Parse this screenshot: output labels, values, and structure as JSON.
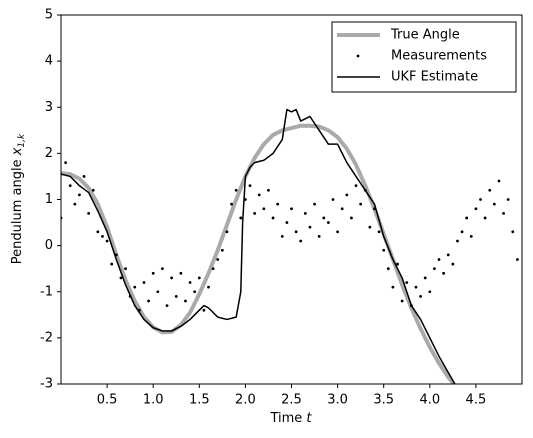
{
  "chart_data": {
    "type": "line",
    "xlabel": "Time",
    "xlabel_var": "t",
    "ylabel": "Pendulum angle",
    "ylabel_var": "x",
    "ylabel_sub": "1,k",
    "xlim": [
      0,
      5
    ],
    "xticks": [
      0.5,
      1.0,
      1.5,
      2.0,
      2.5,
      3.0,
      3.5,
      4.0,
      4.5
    ],
    "ylim": [
      -3,
      5
    ],
    "yticks": [
      -3,
      -2,
      -1,
      0,
      1,
      2,
      3,
      4,
      5
    ],
    "legend": "upper right",
    "series": [
      {
        "name": "True Angle",
        "kind": "line",
        "color": "#aaaaaa",
        "width": 4,
        "x": [
          0,
          0.1,
          0.2,
          0.3,
          0.4,
          0.5,
          0.6,
          0.7,
          0.8,
          0.9,
          1.0,
          1.1,
          1.2,
          1.3,
          1.4,
          1.5,
          1.6,
          1.7,
          1.8,
          1.9,
          2.0,
          2.1,
          2.2,
          2.3,
          2.4,
          2.5,
          2.6,
          2.7,
          2.8,
          2.9,
          3.0,
          3.1,
          3.2,
          3.3,
          3.4,
          3.5,
          3.6,
          3.7,
          3.8,
          3.9,
          4.0,
          4.1,
          4.2,
          4.3
        ],
        "values": [
          1.57,
          1.55,
          1.45,
          1.25,
          0.9,
          0.4,
          -0.2,
          -0.75,
          -1.2,
          -1.55,
          -1.77,
          -1.88,
          -1.87,
          -1.72,
          -1.45,
          -1.05,
          -0.6,
          -0.1,
          0.45,
          1.0,
          1.5,
          1.9,
          2.2,
          2.4,
          2.5,
          2.55,
          2.6,
          2.6,
          2.58,
          2.5,
          2.35,
          2.1,
          1.75,
          1.3,
          0.8,
          0.25,
          -0.3,
          -0.85,
          -1.35,
          -1.8,
          -2.2,
          -2.55,
          -2.85,
          -3.1
        ]
      },
      {
        "name": "Measurements",
        "kind": "scatter",
        "color": "#000000",
        "x": [
          0,
          0.05,
          0.1,
          0.15,
          0.2,
          0.25,
          0.3,
          0.35,
          0.4,
          0.45,
          0.5,
          0.55,
          0.6,
          0.65,
          0.7,
          0.75,
          0.8,
          0.85,
          0.9,
          0.95,
          1.0,
          1.05,
          1.1,
          1.15,
          1.2,
          1.25,
          1.3,
          1.35,
          1.4,
          1.45,
          1.5,
          1.55,
          1.6,
          1.65,
          1.7,
          1.75,
          1.8,
          1.85,
          1.9,
          1.95,
          2.0,
          2.05,
          2.1,
          2.15,
          2.2,
          2.25,
          2.3,
          2.35,
          2.4,
          2.45,
          2.5,
          2.55,
          2.6,
          2.65,
          2.7,
          2.75,
          2.8,
          2.85,
          2.9,
          2.95,
          3.0,
          3.05,
          3.1,
          3.15,
          3.2,
          3.25,
          3.3,
          3.35,
          3.4,
          3.45,
          3.5,
          3.55,
          3.6,
          3.65,
          3.7,
          3.75,
          3.8,
          3.85,
          3.9,
          3.95,
          4.0,
          4.05,
          4.1,
          4.15,
          4.2,
          4.25,
          4.3,
          4.35,
          4.4,
          4.45,
          4.5,
          4.55,
          4.6,
          4.65,
          4.7,
          4.75,
          4.8,
          4.85,
          4.9,
          4.95
        ],
        "values": [
          0.6,
          1.8,
          1.3,
          0.9,
          1.1,
          1.5,
          0.7,
          1.2,
          0.3,
          0.2,
          0.1,
          -0.4,
          -0.2,
          -0.7,
          -0.5,
          -1.1,
          -0.9,
          -1.4,
          -0.8,
          -1.2,
          -0.6,
          -1.0,
          -0.5,
          -1.3,
          -0.7,
          -1.1,
          -0.6,
          -1.2,
          -0.8,
          -1.0,
          -0.7,
          -1.4,
          -0.9,
          -0.5,
          -0.3,
          -0.1,
          0.3,
          0.9,
          1.2,
          0.6,
          1.0,
          1.3,
          0.7,
          1.1,
          0.8,
          1.2,
          0.6,
          0.9,
          0.2,
          0.5,
          0.8,
          0.3,
          0.1,
          0.7,
          0.4,
          0.9,
          0.2,
          0.6,
          0.5,
          1.0,
          0.3,
          0.8,
          1.1,
          0.6,
          1.3,
          0.9,
          1.2,
          0.4,
          0.8,
          0.3,
          -0.1,
          -0.5,
          -0.9,
          -0.4,
          -1.2,
          -0.8,
          -1.3,
          -0.9,
          -1.1,
          -0.7,
          -1.0,
          -0.5,
          -0.3,
          -0.6,
          -0.2,
          -0.4,
          0.1,
          0.3,
          0.6,
          0.2,
          0.8,
          1.0,
          0.6,
          1.2,
          0.9,
          1.4,
          0.7,
          1.0,
          0.3,
          -0.3
        ]
      },
      {
        "name": "UKF Estimate",
        "kind": "line",
        "color": "#000000",
        "width": 1.5,
        "x": [
          0,
          0.1,
          0.2,
          0.3,
          0.4,
          0.5,
          0.6,
          0.7,
          0.8,
          0.9,
          1.0,
          1.1,
          1.2,
          1.3,
          1.4,
          1.5,
          1.55,
          1.6,
          1.7,
          1.8,
          1.9,
          1.95,
          1.97,
          2.0,
          2.05,
          2.1,
          2.2,
          2.3,
          2.4,
          2.45,
          2.5,
          2.55,
          2.6,
          2.7,
          2.8,
          2.9,
          3.0,
          3.1,
          3.2,
          3.3,
          3.4,
          3.5,
          3.6,
          3.7,
          3.8,
          3.9,
          4.0,
          4.1,
          4.2,
          4.3
        ],
        "values": [
          1.55,
          1.5,
          1.3,
          1.15,
          0.75,
          0.3,
          -0.3,
          -0.85,
          -1.3,
          -1.6,
          -1.78,
          -1.85,
          -1.85,
          -1.75,
          -1.6,
          -1.4,
          -1.3,
          -1.35,
          -1.55,
          -1.6,
          -1.55,
          -1.0,
          0.5,
          1.5,
          1.7,
          1.8,
          1.85,
          2.0,
          2.3,
          2.95,
          2.9,
          2.95,
          2.7,
          2.8,
          2.5,
          2.2,
          2.2,
          1.8,
          1.5,
          1.2,
          0.9,
          0.2,
          -0.3,
          -0.7,
          -1.3,
          -1.6,
          -2.0,
          -2.4,
          -2.75,
          -3.1
        ]
      }
    ]
  }
}
